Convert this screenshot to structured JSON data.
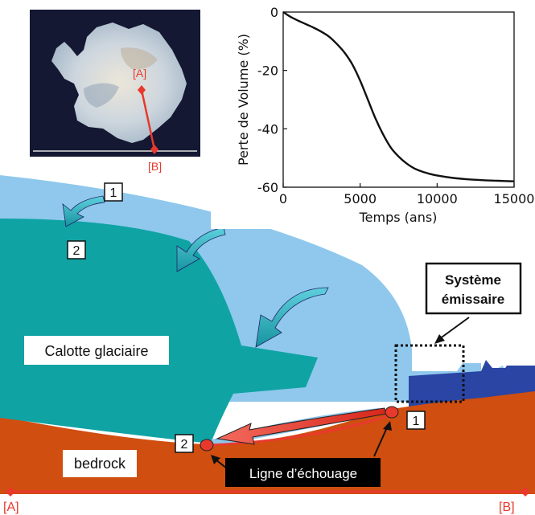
{
  "map": {
    "point_a": "[A]",
    "point_b": "[B]"
  },
  "chart_data": {
    "type": "line",
    "xlabel": "Temps (ans)",
    "ylabel": "Perte de Volume (%)",
    "xlim": [
      0,
      15000
    ],
    "ylim": [
      -60,
      0
    ],
    "x_ticks": [
      0,
      5000,
      10000,
      15000
    ],
    "y_ticks": [
      0,
      -20,
      -40,
      -60
    ],
    "grid": false,
    "series": [
      {
        "x": [
          0,
          500,
          1000,
          1500,
          2000,
          2500,
          3000,
          3500,
          4000,
          4500,
          5000,
          5500,
          6000,
          6500,
          7000,
          7500,
          8000,
          8500,
          9000,
          9500,
          10000,
          11000,
          12000,
          13000,
          14000,
          15000
        ],
        "values": [
          0,
          -1.7,
          -3.0,
          -4.2,
          -5.4,
          -6.8,
          -8.5,
          -11,
          -14,
          -18,
          -23.5,
          -30,
          -36.5,
          -42,
          -46.5,
          -49.5,
          -51.8,
          -53.5,
          -54.6,
          -55.4,
          -56.0,
          -56.8,
          -57.3,
          -57.6,
          -57.8,
          -58.0
        ],
        "color": "#111111"
      }
    ]
  },
  "diagram": {
    "marker_1": "1",
    "marker_2": "2",
    "calotte_label": "Calotte glaciaire",
    "bedrock_label": "bedrock",
    "systeme_label_line1": "Système",
    "systeme_label_line2": "émissaire",
    "ligne_label": "Ligne d’échouage",
    "axis_a": "[A]",
    "axis_b": "[B]"
  },
  "colors": {
    "ice_light": "#8fc8ec",
    "ice_dark": "#10a3a4",
    "bedrock": "#cf4e10",
    "ocean": "#2a45a4",
    "accent_red": "#e8392c",
    "arrow_teal": "#2fb3c3"
  }
}
